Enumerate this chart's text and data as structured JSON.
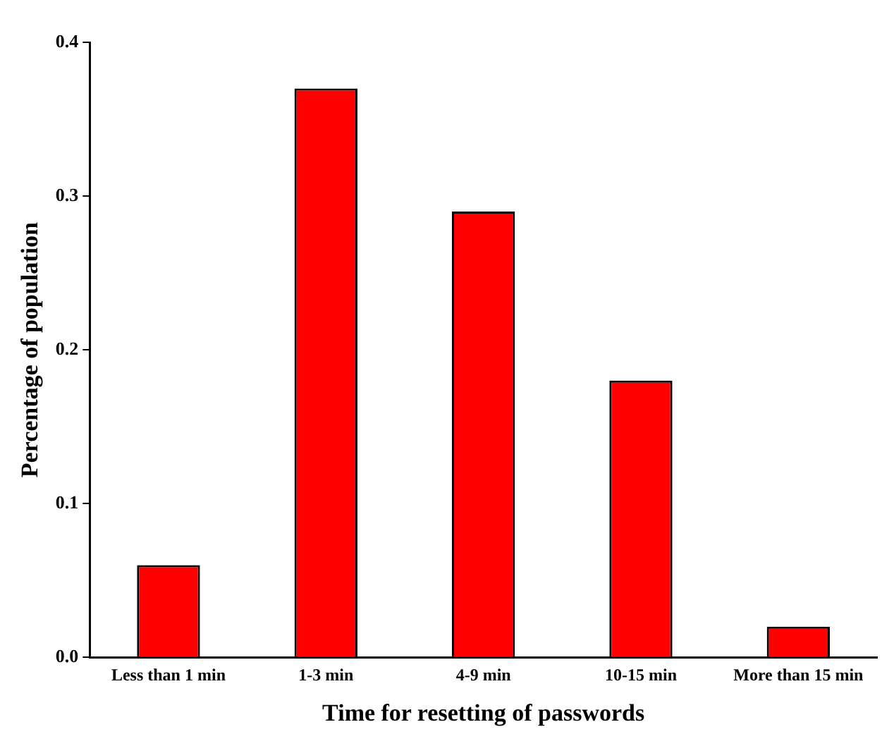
{
  "chart_data": {
    "type": "bar",
    "xlabel": "Time for resetting of passwords",
    "ylabel": "Percentage of population",
    "categories": [
      "Less than 1 min",
      "1-3 min",
      "4-9 min",
      "10-15 min",
      "More than 15 min"
    ],
    "values": [
      0.06,
      0.37,
      0.29,
      0.18,
      0.02
    ],
    "color": "#ff0000",
    "ylim": [
      0,
      0.4
    ],
    "yticks": [
      {
        "value": 0,
        "label": "0.0"
      },
      0.1,
      0.2,
      0.3,
      0.4
    ],
    "grid": false,
    "legend": false
  }
}
